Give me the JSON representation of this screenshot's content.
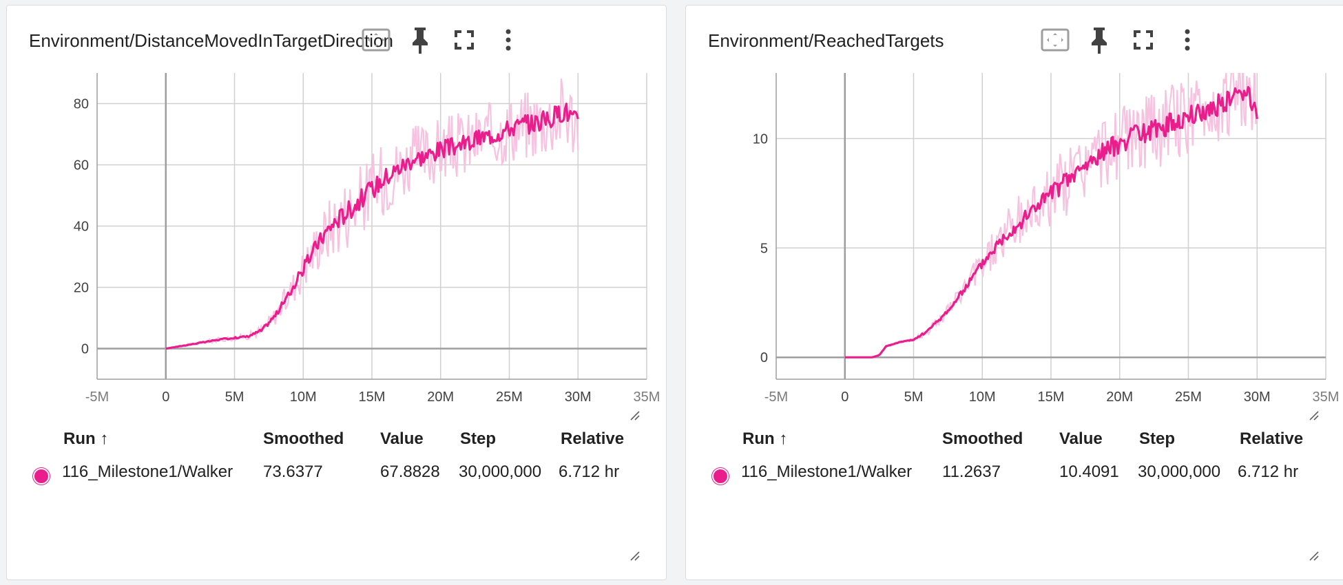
{
  "colors": {
    "series": "#e91e8c",
    "series_light": "#f7c2e0",
    "grid": "#d0d0d0",
    "axis": "#9e9e9e"
  },
  "cards": [
    {
      "title": "Environment/DistanceMovedInTargetDirection",
      "icons": [
        "fit-domain-icon",
        "pin-icon",
        "fullscreen-icon",
        "more-vert-icon"
      ],
      "table": {
        "headers": {
          "run": "Run ↑",
          "smoothed": "Smoothed",
          "value": "Value",
          "step": "Step",
          "relative": "Relative"
        },
        "row": {
          "run": "116_Milestone1/Walker",
          "smoothed": "73.6377",
          "value": "67.8828",
          "step": "30,000,000",
          "relative": "6.712 hr"
        }
      }
    },
    {
      "title": "Environment/ReachedTargets",
      "icons": [
        "fit-domain-icon",
        "pin-icon",
        "fullscreen-icon",
        "more-vert-icon"
      ],
      "table": {
        "headers": {
          "run": "Run ↑",
          "smoothed": "Smoothed",
          "value": "Value",
          "step": "Step",
          "relative": "Relative"
        },
        "row": {
          "run": "116_Milestone1/Walker",
          "smoothed": "11.2637",
          "value": "10.4091",
          "step": "30,000,000",
          "relative": "6.712 hr"
        }
      }
    }
  ],
  "chart_data": [
    {
      "type": "line",
      "title": "Environment/DistanceMovedInTargetDirection",
      "xlabel": "",
      "ylabel": "",
      "xlim": [
        -5000000,
        35000000
      ],
      "ylim": [
        -10,
        90
      ],
      "x_ticks": [
        -5000000,
        0,
        5000000,
        10000000,
        15000000,
        20000000,
        25000000,
        30000000,
        35000000
      ],
      "x_tick_labels": [
        "-5M",
        "0",
        "5M",
        "10M",
        "15M",
        "20M",
        "25M",
        "30M",
        "35M"
      ],
      "y_ticks": [
        0,
        20,
        40,
        60,
        80
      ],
      "y_tick_labels": [
        "0",
        "20",
        "40",
        "60",
        "80"
      ],
      "grid": true,
      "series": [
        {
          "name": "116_Milestone1/Walker",
          "x": [
            0,
            2000000,
            4000000,
            6000000,
            7000000,
            8000000,
            9000000,
            10000000,
            11000000,
            12000000,
            13000000,
            14000000,
            15000000,
            16000000,
            17000000,
            18000000,
            19000000,
            20000000,
            21000000,
            22000000,
            23000000,
            24000000,
            25000000,
            26000000,
            27000000,
            28000000,
            29000000,
            30000000
          ],
          "smoothed": [
            0,
            1.5,
            3,
            4,
            6,
            11,
            18,
            26,
            34,
            40,
            44,
            48,
            52,
            56,
            59,
            62,
            63,
            65,
            66,
            67,
            69,
            70,
            72,
            73,
            74,
            75,
            78,
            73.6377
          ],
          "noise": [
            0,
            0.5,
            0.8,
            1,
            2,
            3,
            5,
            7,
            9,
            11,
            12,
            12,
            12,
            12,
            11,
            11,
            11,
            11,
            11,
            11,
            11,
            11,
            11,
            12,
            12,
            12,
            13,
            12
          ],
          "last_value": 67.8828
        }
      ]
    },
    {
      "type": "line",
      "title": "Environment/ReachedTargets",
      "xlabel": "",
      "ylabel": "",
      "xlim": [
        -5000000,
        35000000
      ],
      "ylim": [
        -1,
        13
      ],
      "x_ticks": [
        -5000000,
        0,
        5000000,
        10000000,
        15000000,
        20000000,
        25000000,
        30000000,
        35000000
      ],
      "x_tick_labels": [
        "-5M",
        "0",
        "5M",
        "10M",
        "15M",
        "20M",
        "25M",
        "30M",
        "35M"
      ],
      "y_ticks": [
        0,
        5,
        10
      ],
      "y_tick_labels": [
        "0",
        "5",
        "10"
      ],
      "grid": true,
      "series": [
        {
          "name": "116_Milestone1/Walker",
          "x": [
            0,
            1000000,
            2000000,
            2500000,
            3000000,
            4000000,
            5000000,
            6000000,
            7000000,
            8000000,
            9000000,
            10000000,
            11000000,
            12000000,
            13000000,
            14000000,
            15000000,
            16000000,
            17000000,
            18000000,
            19000000,
            20000000,
            21000000,
            22000000,
            23000000,
            24000000,
            25000000,
            26000000,
            27000000,
            28000000,
            29000000,
            30000000
          ],
          "smoothed": [
            0,
            0,
            0,
            0.1,
            0.5,
            0.7,
            0.8,
            1.2,
            1.8,
            2.5,
            3.4,
            4.3,
            5.1,
            5.8,
            6.3,
            7,
            7.5,
            8,
            8.5,
            9,
            9.5,
            9.8,
            10.1,
            10.3,
            10.5,
            10.8,
            11,
            11.2,
            11.5,
            11.8,
            12.2,
            11.2637
          ],
          "noise": [
            0,
            0,
            0,
            0.02,
            0.05,
            0.05,
            0.1,
            0.2,
            0.3,
            0.4,
            0.6,
            0.8,
            1,
            1.2,
            1.3,
            1.4,
            1.5,
            1.6,
            1.6,
            1.6,
            1.7,
            1.7,
            1.7,
            1.7,
            1.8,
            1.8,
            1.8,
            1.8,
            1.8,
            1.8,
            1.8,
            1.8
          ],
          "last_value": 10.4091
        }
      ]
    }
  ]
}
